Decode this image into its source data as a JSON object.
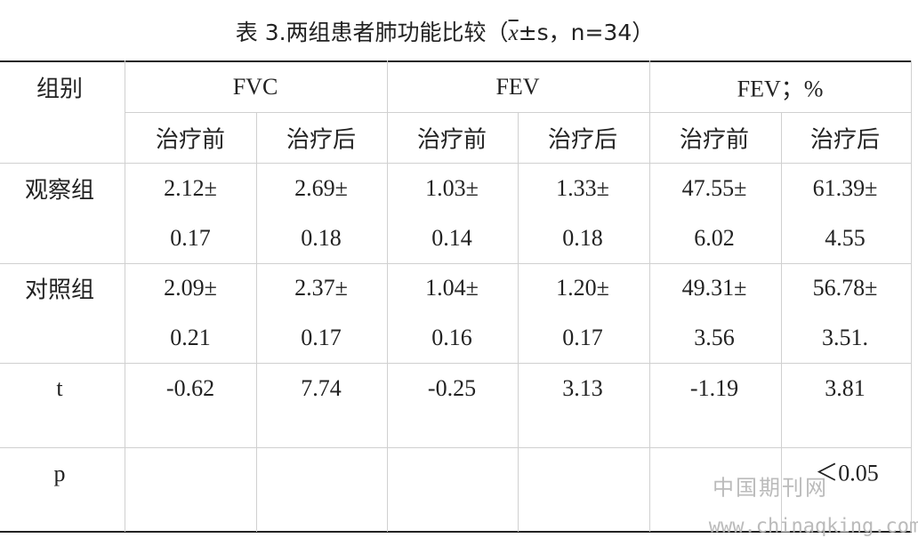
{
  "title": {
    "prefix": "表 3.两组患者肺功能比较（",
    "symbol": "x",
    "suffix": "±s，n=34）"
  },
  "table": {
    "header": {
      "group": "组别",
      "columns": [
        "FVC",
        "FEV",
        "FEV；%"
      ],
      "subcolumns": [
        "治疗前",
        "治疗后",
        "治疗前",
        "治疗后",
        "治疗前",
        "治疗后"
      ]
    },
    "rows": [
      {
        "label": "观察组",
        "cells": [
          [
            "2.12±",
            "0.17"
          ],
          [
            "2.69±",
            "0.18"
          ],
          [
            "1.03±",
            "0.14"
          ],
          [
            "1.33±",
            "0.18"
          ],
          [
            "47.55±",
            "6.02"
          ],
          [
            "61.39±",
            "4.55"
          ]
        ]
      },
      {
        "label": "对照组",
        "cells": [
          [
            "2.09±",
            "0.21"
          ],
          [
            "2.37±",
            "0.17"
          ],
          [
            "1.04±",
            "0.16"
          ],
          [
            "1.20±",
            "0.17"
          ],
          [
            "49.31±",
            "3.56"
          ],
          [
            "56.78±",
            "3.51."
          ]
        ]
      }
    ],
    "t": {
      "label": "t",
      "cells": [
        "-0.62",
        "7.74",
        "-0.25",
        "3.13",
        "-1.19",
        "3.81"
      ]
    },
    "p": {
      "label": "p",
      "value": "＜0.05"
    }
  },
  "watermark": {
    "cn": "中国期刊网",
    "url": "www.chinaqking.com"
  }
}
